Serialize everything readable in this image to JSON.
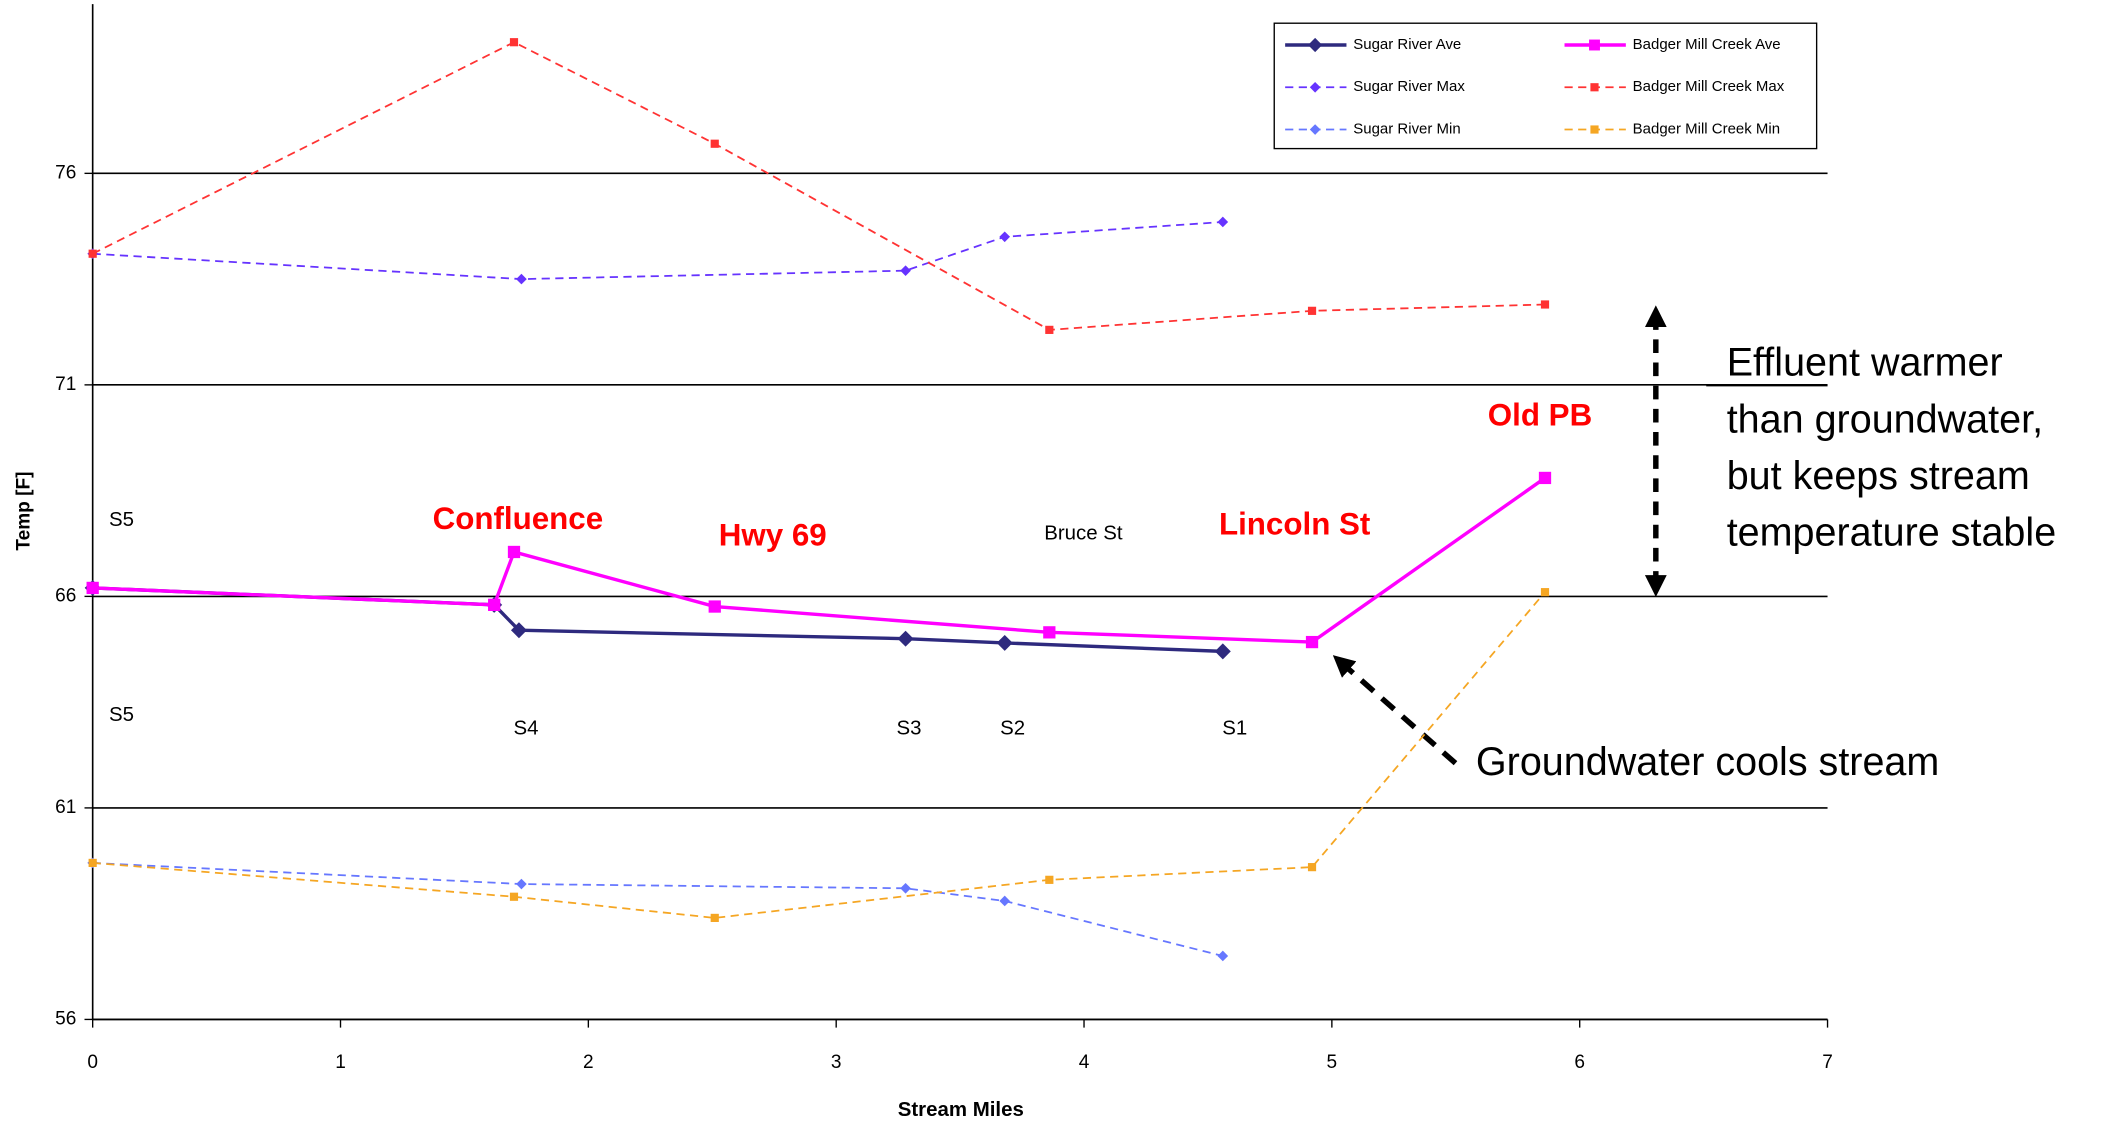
{
  "chart_data": {
    "type": "line",
    "x_label": "Stream Miles",
    "y_label": "Temp [F]",
    "xlim": [
      0,
      7
    ],
    "ylim": [
      56,
      80
    ],
    "xticks": [
      0,
      1,
      2,
      3,
      4,
      5,
      6,
      7
    ],
    "yticks": [
      56,
      61,
      66,
      71,
      76
    ],
    "grid": true,
    "legend": "upper right",
    "series": [
      {
        "name": "Sugar River Ave",
        "color": "#2e2a7e",
        "marker": "diamond",
        "dashed": false,
        "x": [
          0,
          1.62,
          1.72,
          3.28,
          3.68,
          4.56
        ],
        "values": [
          66.2,
          65.8,
          65.2,
          65.0,
          64.9,
          64.7
        ]
      },
      {
        "name": "Badger Mill Creek Ave",
        "color": "#ff00ff",
        "marker": "square",
        "dashed": false,
        "x": [
          0,
          1.62,
          1.7,
          2.51,
          3.86,
          4.92,
          5.86
        ],
        "values": [
          66.2,
          65.8,
          67.05,
          65.76,
          65.15,
          64.92,
          68.8
        ]
      },
      {
        "name": "Sugar River Max",
        "color": "#6633ff",
        "marker": "diamond",
        "dashed": true,
        "x": [
          0,
          1.73,
          3.28,
          3.68,
          4.56
        ],
        "values": [
          74.1,
          73.5,
          73.7,
          74.5,
          74.85
        ]
      },
      {
        "name": "Badger Mill Creek Max",
        "color": "#ff3333",
        "marker": "square",
        "dashed": true,
        "x": [
          0,
          1.7,
          2.51,
          3.86,
          4.92,
          5.86
        ],
        "values": [
          74.1,
          79.1,
          76.7,
          72.3,
          72.75,
          72.9
        ]
      },
      {
        "name": "Sugar River Min",
        "color": "#6677ff",
        "marker": "diamond",
        "dashed": true,
        "x": [
          0,
          1.73,
          3.28,
          3.68,
          4.56
        ],
        "values": [
          59.7,
          59.2,
          59.1,
          58.8,
          57.5
        ]
      },
      {
        "name": "Badger Mill Creek Min",
        "color": "#f5a623",
        "marker": "square",
        "dashed": true,
        "x": [
          0,
          1.7,
          2.51,
          3.86,
          4.92,
          5.86
        ],
        "values": [
          59.7,
          58.9,
          58.4,
          59.3,
          59.6,
          66.1
        ]
      }
    ],
    "annotations": [
      {
        "text": "S5",
        "color": "#000000",
        "bold": false
      },
      {
        "text": "S5",
        "color": "#000000",
        "bold": false
      },
      {
        "text": "Confluence",
        "color": "#ff0000",
        "bold": true
      },
      {
        "text": "Hwy 69",
        "color": "#ff0000",
        "bold": true
      },
      {
        "text": "Bruce St",
        "color": "#000000",
        "bold": false
      },
      {
        "text": "Lincoln St",
        "color": "#ff0000",
        "bold": true
      },
      {
        "text": "Old PB",
        "color": "#ff0000",
        "bold": true
      },
      {
        "text": "S4",
        "color": "#000000",
        "bold": false
      },
      {
        "text": "S3",
        "color": "#000000",
        "bold": false
      },
      {
        "text": "S2",
        "color": "#000000",
        "bold": false
      },
      {
        "text": "S1",
        "color": "#000000",
        "bold": false
      }
    ],
    "effluent_note": [
      "Effluent warmer",
      "than groundwater,",
      "but keeps stream",
      "temperature stable"
    ],
    "groundwater_note": "Groundwater cools stream"
  }
}
